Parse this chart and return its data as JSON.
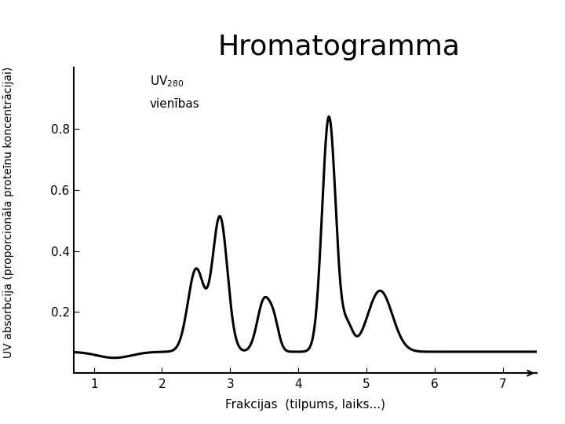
{
  "title": "Hromatogramma",
  "xlabel": "Frakcijas  (tilpums, laiks...)",
  "ylabel": "UV absorbcija (proporcionāla proteīnu koncentrācijai)",
  "xlim": [
    0.7,
    7.5
  ],
  "ylim": [
    0.0,
    1.0
  ],
  "xticks": [
    1,
    2,
    3,
    4,
    5,
    6,
    7
  ],
  "yticks": [
    0.2,
    0.4,
    0.6,
    0.8
  ],
  "background_color": "#ffffff",
  "line_color": "#000000",
  "line_width": 2.2,
  "title_fontsize": 26,
  "axis_label_fontsize": 10,
  "tick_fontsize": 11,
  "uv_label_fontsize": 11,
  "peaks": [
    {
      "mu": 1.3,
      "sigma": 0.25,
      "amp": -0.02
    },
    {
      "mu": 2.5,
      "sigma": 0.12,
      "amp": 0.27
    },
    {
      "mu": 2.85,
      "sigma": 0.11,
      "amp": 0.44
    },
    {
      "mu": 3.5,
      "sigma": 0.1,
      "amp": 0.17
    },
    {
      "mu": 3.65,
      "sigma": 0.07,
      "amp": 0.07
    },
    {
      "mu": 4.45,
      "sigma": 0.1,
      "amp": 0.77
    },
    {
      "mu": 4.72,
      "sigma": 0.08,
      "amp": 0.08
    },
    {
      "mu": 5.2,
      "sigma": 0.18,
      "amp": 0.2
    }
  ],
  "baseline": 0.07,
  "baseline_min": 0.05
}
